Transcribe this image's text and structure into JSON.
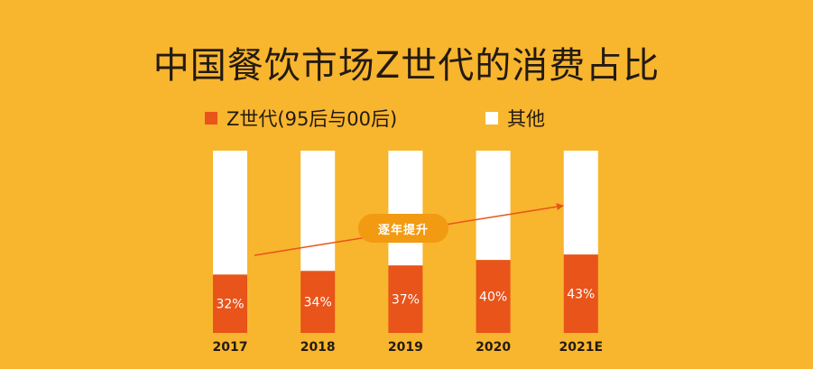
{
  "chart_data": {
    "type": "bar",
    "stacked": true,
    "title": "中国餐饮市场Z世代的消费占比",
    "categories": [
      "2017",
      "2018",
      "2019",
      "2020",
      "2021E"
    ],
    "series": [
      {
        "name": "Z世代(95后与00后)",
        "values": [
          32,
          34,
          37,
          40,
          43
        ],
        "color": "#e8541a"
      },
      {
        "name": "其他",
        "values": [
          68,
          66,
          63,
          60,
          57
        ],
        "color": "#ffffff"
      }
    ],
    "data_labels": [
      "32%",
      "34%",
      "37%",
      "40%",
      "43%"
    ],
    "ylim": [
      0,
      100
    ],
    "grid": false,
    "legend_position": "top",
    "annotation": {
      "text": "逐年提升",
      "color": "#f29a12"
    }
  },
  "colors": {
    "background": "#f8b52e",
    "arrow": "#e8541a",
    "text": "#231a12"
  }
}
